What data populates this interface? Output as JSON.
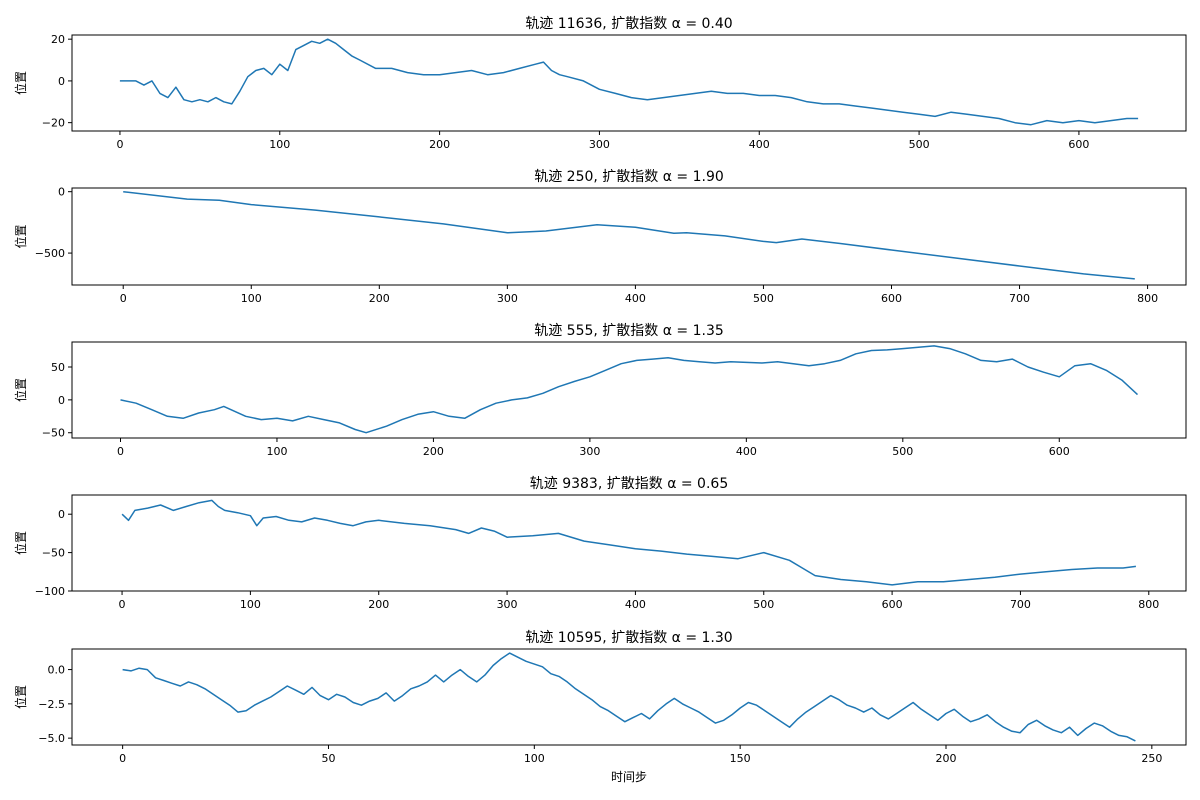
{
  "colors": {
    "line": "#1f77b4",
    "frame": "#000000",
    "background": "#ffffff"
  },
  "chart_data": [
    {
      "type": "line",
      "title": "轨迹 11636, 扩散指数 α = 0.40",
      "ylabel": "位置",
      "xlabel": "",
      "xlim": [
        -30,
        667
      ],
      "ylim": [
        -24,
        22
      ],
      "xticks": [
        "0",
        "100",
        "200",
        "300",
        "400",
        "500",
        "600"
      ],
      "yticks": [
        "20",
        "0",
        "−20"
      ],
      "series": [
        {
          "x": [
            0,
            5,
            10,
            15,
            20,
            25,
            30,
            35,
            40,
            45,
            50,
            55,
            60,
            65,
            70,
            75,
            80,
            85,
            90,
            95,
            100,
            105,
            110,
            115,
            120,
            125,
            130,
            135,
            140,
            145,
            150,
            160,
            170,
            180,
            190,
            200,
            210,
            220,
            230,
            240,
            250,
            260,
            265,
            270,
            275,
            280,
            290,
            300,
            310,
            320,
            330,
            340,
            350,
            360,
            370,
            380,
            390,
            400,
            410,
            420,
            430,
            440,
            450,
            460,
            470,
            480,
            490,
            500,
            510,
            520,
            530,
            540,
            550,
            560,
            570,
            580,
            590,
            600,
            610,
            620,
            630,
            637
          ],
          "y": [
            0,
            0,
            0,
            -2,
            0,
            -6,
            -8,
            -3,
            -9,
            -10,
            -9,
            -10,
            -8,
            -10,
            -11,
            -5,
            2,
            5,
            6,
            3,
            8,
            5,
            15,
            17,
            19,
            18,
            20,
            18,
            15,
            12,
            10,
            6,
            6,
            4,
            3,
            3,
            4,
            5,
            3,
            4,
            6,
            8,
            9,
            5,
            3,
            2,
            0,
            -4,
            -6,
            -8,
            -9,
            -8,
            -7,
            -6,
            -5,
            -6,
            -6,
            -7,
            -7,
            -8,
            -10,
            -11,
            -11,
            -12,
            -13,
            -14,
            -15,
            -16,
            -17,
            -15,
            -16,
            -17,
            -18,
            -20,
            -21,
            -19,
            -20,
            -19,
            -20,
            -19,
            -18,
            -18
          ]
        }
      ]
    },
    {
      "type": "line",
      "title": "轨迹 250, 扩散指数 α = 1.90",
      "ylabel": "位置",
      "xlabel": "",
      "xlim": [
        -40,
        830
      ],
      "ylim": [
        -760,
        30
      ],
      "xticks": [
        "0",
        "100",
        "200",
        "300",
        "400",
        "500",
        "600",
        "700",
        "800"
      ],
      "yticks": [
        "0",
        "−500"
      ],
      "series": [
        {
          "x": [
            0,
            50,
            75,
            100,
            150,
            200,
            250,
            300,
            330,
            370,
            400,
            430,
            440,
            470,
            500,
            510,
            530,
            560,
            600,
            650,
            700,
            750,
            790
          ],
          "y": [
            0,
            -60,
            -70,
            -105,
            -150,
            -205,
            -262,
            -335,
            -320,
            -270,
            -290,
            -338,
            -335,
            -360,
            -405,
            -415,
            -385,
            -422,
            -475,
            -540,
            -605,
            -670,
            -710
          ]
        }
      ]
    },
    {
      "type": "line",
      "title": "轨迹 555, 扩散指数 α = 1.35",
      "ylabel": "位置",
      "xlabel": "",
      "xlim": [
        -31,
        681
      ],
      "ylim": [
        -58,
        88
      ],
      "xticks": [
        "0",
        "100",
        "200",
        "300",
        "400",
        "500",
        "600"
      ],
      "yticks": [
        "50",
        "0",
        "−50"
      ],
      "series": [
        {
          "x": [
            0,
            10,
            20,
            30,
            40,
            50,
            60,
            66,
            80,
            90,
            100,
            110,
            120,
            130,
            140,
            150,
            157,
            170,
            180,
            190,
            200,
            210,
            220,
            230,
            240,
            250,
            260,
            270,
            280,
            290,
            300,
            310,
            320,
            330,
            340,
            350,
            360,
            370,
            380,
            390,
            400,
            410,
            420,
            430,
            440,
            450,
            460,
            470,
            480,
            490,
            500,
            510,
            520,
            530,
            540,
            550,
            560,
            570,
            580,
            590,
            600,
            610,
            620,
            630,
            640,
            650
          ],
          "y": [
            0,
            -5,
            -15,
            -25,
            -28,
            -20,
            -15,
            -10,
            -25,
            -30,
            -28,
            -32,
            -25,
            -30,
            -35,
            -45,
            -50,
            -40,
            -30,
            -22,
            -18,
            -25,
            -28,
            -15,
            -5,
            0,
            3,
            10,
            20,
            28,
            35,
            45,
            55,
            60,
            62,
            64,
            60,
            58,
            56,
            58,
            57,
            56,
            58,
            55,
            52,
            55,
            60,
            70,
            75,
            76,
            78,
            80,
            82,
            78,
            70,
            60,
            58,
            62,
            50,
            42,
            35,
            52,
            55,
            45,
            30,
            8
          ]
        }
      ]
    },
    {
      "type": "line",
      "title": "轨迹 9383, 扩散指数 α = 0.65",
      "ylabel": "位置",
      "xlabel": "",
      "xlim": [
        -39,
        829
      ],
      "ylim": [
        -100,
        25
      ],
      "xticks": [
        "0",
        "100",
        "200",
        "300",
        "400",
        "500",
        "600",
        "700",
        "800"
      ],
      "yticks": [
        "0",
        "−50",
        "−100"
      ],
      "series": [
        {
          "x": [
            0,
            5,
            10,
            20,
            30,
            40,
            50,
            60,
            70,
            75,
            80,
            90,
            100,
            105,
            110,
            120,
            130,
            140,
            150,
            160,
            170,
            180,
            190,
            200,
            220,
            240,
            260,
            270,
            280,
            290,
            300,
            320,
            340,
            360,
            380,
            400,
            420,
            440,
            460,
            480,
            500,
            520,
            530,
            540,
            560,
            580,
            600,
            620,
            640,
            660,
            680,
            700,
            720,
            740,
            760,
            780,
            790
          ],
          "y": [
            0,
            -8,
            5,
            8,
            12,
            5,
            10,
            15,
            18,
            10,
            5,
            2,
            -2,
            -15,
            -5,
            -3,
            -8,
            -10,
            -5,
            -8,
            -12,
            -15,
            -10,
            -8,
            -12,
            -15,
            -20,
            -25,
            -18,
            -22,
            -30,
            -28,
            -25,
            -35,
            -40,
            -45,
            -48,
            -52,
            -55,
            -58,
            -50,
            -60,
            -70,
            -80,
            -85,
            -88,
            -92,
            -88,
            -88,
            -85,
            -82,
            -78,
            -75,
            -72,
            -70,
            -70,
            -68
          ]
        }
      ]
    },
    {
      "type": "line",
      "title": "轨迹 10595, 扩散指数 α = 1.30",
      "ylabel": "位置",
      "xlabel": "时间步",
      "xlim": [
        -12.3,
        258.3
      ],
      "ylim": [
        -5.5,
        1.5
      ],
      "xticks": [
        "0",
        "50",
        "100",
        "150",
        "200",
        "250"
      ],
      "yticks": [
        "0.0",
        "−2.5",
        "−5.0"
      ],
      "series": [
        {
          "x": [
            0,
            2,
            4,
            6,
            8,
            10,
            12,
            14,
            16,
            18,
            20,
            22,
            24,
            26,
            28,
            30,
            32,
            34,
            36,
            38,
            40,
            42,
            44,
            46,
            48,
            50,
            52,
            54,
            56,
            58,
            60,
            62,
            64,
            66,
            68,
            70,
            72,
            74,
            76,
            78,
            80,
            82,
            84,
            86,
            88,
            90,
            92,
            94,
            96,
            98,
            100,
            102,
            104,
            106,
            108,
            110,
            112,
            114,
            116,
            118,
            120,
            122,
            124,
            126,
            128,
            130,
            132,
            134,
            136,
            138,
            140,
            142,
            144,
            146,
            148,
            150,
            152,
            154,
            156,
            158,
            160,
            162,
            164,
            166,
            168,
            170,
            172,
            174,
            176,
            178,
            180,
            182,
            184,
            186,
            188,
            190,
            192,
            194,
            196,
            198,
            200,
            202,
            204,
            206,
            208,
            210,
            212,
            214,
            216,
            218,
            220,
            222,
            224,
            226,
            228,
            230,
            232,
            234,
            236,
            238,
            240,
            242,
            244,
            246
          ],
          "y": [
            0.0,
            -0.1,
            0.1,
            0.0,
            -0.6,
            -0.8,
            -1.0,
            -1.2,
            -0.9,
            -1.1,
            -1.4,
            -1.8,
            -2.2,
            -2.6,
            -3.1,
            -3.0,
            -2.6,
            -2.3,
            -2.0,
            -1.6,
            -1.2,
            -1.5,
            -1.8,
            -1.3,
            -1.9,
            -2.2,
            -1.8,
            -2.0,
            -2.4,
            -2.6,
            -2.3,
            -2.1,
            -1.7,
            -2.3,
            -1.9,
            -1.4,
            -1.2,
            -0.9,
            -0.4,
            -0.9,
            -0.4,
            0.0,
            -0.5,
            -0.9,
            -0.4,
            0.3,
            0.8,
            1.2,
            0.9,
            0.6,
            0.4,
            0.2,
            -0.3,
            -0.5,
            -0.9,
            -1.4,
            -1.8,
            -2.2,
            -2.7,
            -3.0,
            -3.4,
            -3.8,
            -3.5,
            -3.2,
            -3.6,
            -3.0,
            -2.5,
            -2.1,
            -2.5,
            -2.8,
            -3.1,
            -3.5,
            -3.9,
            -3.7,
            -3.3,
            -2.8,
            -2.4,
            -2.6,
            -3.0,
            -3.4,
            -3.8,
            -4.2,
            -3.6,
            -3.1,
            -2.7,
            -2.3,
            -1.9,
            -2.2,
            -2.6,
            -2.8,
            -3.1,
            -2.8,
            -3.3,
            -3.6,
            -3.2,
            -2.8,
            -2.4,
            -2.9,
            -3.3,
            -3.7,
            -3.2,
            -2.9,
            -3.4,
            -3.8,
            -3.6,
            -3.3,
            -3.8,
            -4.2,
            -4.5,
            -4.6,
            -4.0,
            -3.7,
            -4.1,
            -4.4,
            -4.6,
            -4.2,
            -4.8,
            -4.3,
            -3.9,
            -4.1,
            -4.5,
            -4.8,
            -4.9,
            -5.2
          ]
        }
      ]
    }
  ]
}
